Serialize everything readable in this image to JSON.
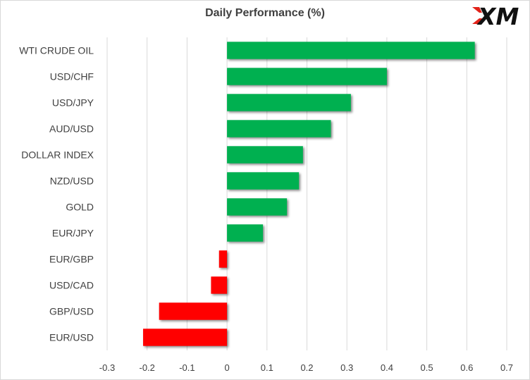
{
  "chart_data": {
    "type": "bar",
    "orientation": "horizontal",
    "title": "Daily Performance  (%)",
    "categories": [
      "WTI CRUDE OIL",
      "USD/CHF",
      "USD/JPY",
      "AUD/USD",
      "DOLLAR INDEX",
      "NZD/USD",
      "GOLD",
      "EUR/JPY",
      "EUR/GBP",
      "USD/CAD",
      "GBP/USD",
      "EUR/USD"
    ],
    "values": [
      0.62,
      0.4,
      0.31,
      0.26,
      0.19,
      0.18,
      0.15,
      0.09,
      -0.02,
      -0.04,
      -0.17,
      -0.21
    ],
    "xlim": [
      -0.3,
      0.7
    ],
    "xticks": [
      "-0.3",
      "-0.2",
      "-0.1",
      "0",
      "0.1",
      "0.2",
      "0.3",
      "0.4",
      "0.5",
      "0.6",
      "0.7"
    ],
    "grid": "vertical",
    "positive_color": "#00b050",
    "negative_color": "#ff0000"
  },
  "logo": {
    "text": "XM",
    "accent_color": "#e2231a"
  }
}
